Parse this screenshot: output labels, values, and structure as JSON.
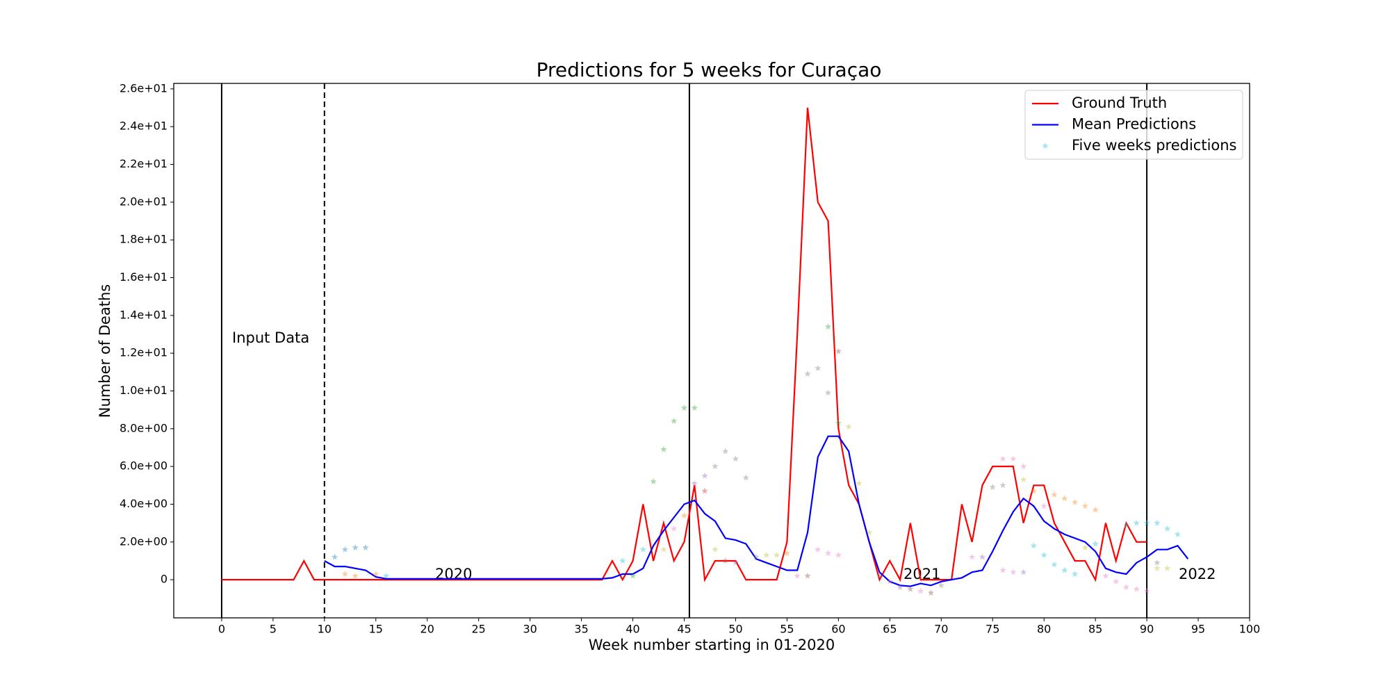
{
  "chart_data": {
    "type": "line",
    "title": "Predictions for 5 weeks for Curaçao",
    "x_label": "Week number starting in 01-2020",
    "y_label": "Number of Deaths",
    "xlim": [
      -4.66,
      100
    ],
    "ylim": [
      -2.02,
      26.29
    ],
    "xticks": [
      0,
      5,
      10,
      15,
      20,
      25,
      30,
      35,
      40,
      45,
      50,
      55,
      60,
      65,
      70,
      75,
      80,
      85,
      90,
      95,
      100
    ],
    "yticks": [
      0,
      {
        "value": 2,
        "label": "2.0e+00"
      },
      {
        "value": 4,
        "label": "4.0e+00"
      },
      {
        "value": 6,
        "label": "6.0e+00"
      },
      {
        "value": 8,
        "label": "8.0e+00"
      },
      {
        "value": 10,
        "label": "1.0e+01"
      },
      {
        "value": 12,
        "label": "1.2e+01"
      },
      {
        "value": 14,
        "label": "1.4e+01"
      },
      {
        "value": 16,
        "label": "1.6e+01"
      },
      {
        "value": 18,
        "label": "1.8e+01"
      },
      {
        "value": 20,
        "label": "2.0e+01"
      },
      {
        "value": 22,
        "label": "2.2e+01"
      },
      {
        "value": 24,
        "label": "2.4e+01"
      },
      {
        "value": 26,
        "label": "2.6e+01"
      }
    ],
    "legend": "upper right",
    "vlines": [
      {
        "x": 0,
        "style": "solid"
      },
      {
        "x": 10,
        "style": "dashed"
      },
      {
        "x": 45.5,
        "style": "solid"
      },
      {
        "x": 90,
        "style": "solid"
      }
    ],
    "annotations": [
      "Input Data",
      "2020",
      "2021",
      "2022"
    ],
    "x": [
      0,
      1,
      2,
      3,
      4,
      5,
      6,
      7,
      8,
      9,
      10,
      11,
      12,
      13,
      14,
      15,
      16,
      17,
      18,
      19,
      20,
      21,
      22,
      23,
      24,
      25,
      26,
      27,
      28,
      29,
      30,
      31,
      32,
      33,
      34,
      35,
      36,
      37,
      38,
      39,
      40,
      41,
      42,
      43,
      44,
      45,
      46,
      47,
      48,
      49,
      50,
      51,
      52,
      53,
      54,
      55,
      56,
      57,
      58,
      59,
      60,
      61,
      62,
      63,
      64,
      65,
      66,
      67,
      68,
      69,
      70,
      71,
      72,
      73,
      74,
      75,
      76,
      77,
      78,
      79,
      80,
      81,
      82,
      83,
      84,
      85,
      86,
      87,
      88,
      89,
      90,
      91,
      92,
      93,
      94
    ],
    "series": [
      {
        "name": "Ground Truth",
        "color": "#ff0000",
        "values": [
          0,
          0,
          0,
          0,
          0,
          0,
          0,
          0,
          1,
          0,
          0,
          0,
          0,
          0,
          0,
          0,
          0,
          0,
          0,
          0,
          0,
          0,
          0,
          0,
          0,
          0,
          0,
          0,
          0,
          0,
          0,
          0,
          0,
          0,
          0,
          0,
          0,
          0,
          1,
          0,
          1,
          4,
          1,
          3,
          1,
          2,
          5,
          0,
          1,
          1,
          1,
          0,
          0,
          0,
          0,
          2,
          13,
          25,
          20,
          19,
          8,
          5,
          4,
          2,
          0,
          1,
          0,
          3,
          0,
          0,
          0,
          0,
          4,
          2,
          5,
          6,
          6,
          6,
          3,
          5,
          5,
          3,
          2,
          1,
          1,
          0,
          3,
          1,
          3,
          2,
          2,
          null,
          null,
          null,
          null
        ]
      },
      {
        "name": "Mean Predictions",
        "color": "#0000ff",
        "values": [
          null,
          null,
          null,
          null,
          null,
          null,
          null,
          null,
          null,
          null,
          1.0,
          0.7,
          0.7,
          0.6,
          0.5,
          0.15,
          0.05,
          0.05,
          0.05,
          0.05,
          0.05,
          0.05,
          0.05,
          0.05,
          0.05,
          0.05,
          0.05,
          0.05,
          0.05,
          0.05,
          0.05,
          0.05,
          0.05,
          0.05,
          0.05,
          0.05,
          0.05,
          0.05,
          0.1,
          0.3,
          0.3,
          0.6,
          1.8,
          2.6,
          3.3,
          4.0,
          4.2,
          3.5,
          3.1,
          2.2,
          2.1,
          1.9,
          1.1,
          0.9,
          0.7,
          0.5,
          0.5,
          2.5,
          6.5,
          7.6,
          7.6,
          6.8,
          4.0,
          2.0,
          0.4,
          -0.1,
          -0.3,
          -0.35,
          -0.2,
          -0.3,
          -0.1,
          0.0,
          0.1,
          0.4,
          0.5,
          1.5,
          2.6,
          3.6,
          4.3,
          3.9,
          3.1,
          2.7,
          2.4,
          2.2,
          2.0,
          1.5,
          0.6,
          0.4,
          0.3,
          0.9,
          1.2,
          1.6,
          1.6,
          1.8,
          1.1
        ]
      },
      {
        "name": "Five weeks predictions",
        "type": "scatter",
        "color": "#17becf",
        "x": [
          11,
          12,
          13,
          14,
          12,
          13,
          15,
          16,
          39,
          40,
          41,
          42,
          43,
          44,
          45,
          46,
          43,
          44,
          45,
          46,
          47,
          47,
          48,
          49,
          50,
          51,
          48,
          49,
          50,
          52,
          53,
          54,
          55,
          56,
          57,
          58,
          59,
          59,
          60,
          60,
          61,
          62,
          63,
          58,
          59,
          60,
          57,
          64,
          65,
          66,
          67,
          68,
          69,
          70,
          73,
          74,
          75,
          76,
          77,
          78,
          78,
          76,
          79,
          80,
          81,
          82,
          83,
          84,
          85,
          79,
          80,
          81,
          82,
          83,
          84,
          85,
          86,
          87,
          88,
          89,
          90,
          88,
          89,
          90,
          91,
          92,
          93,
          91,
          92,
          91,
          76,
          77,
          78
        ],
        "values": [
          1.2,
          1.6,
          1.7,
          1.7,
          0.3,
          0.2,
          0.3,
          0.2,
          1.0,
          0.2,
          1.6,
          5.2,
          6.9,
          8.4,
          9.1,
          9.1,
          1.6,
          2.7,
          3.4,
          5.1,
          5.5,
          4.7,
          6.0,
          6.8,
          6.4,
          5.4,
          1.6,
          1.0,
          0.9,
          1.2,
          1.3,
          1.3,
          1.4,
          0.2,
          10.9,
          11.2,
          13.4,
          9.9,
          12.1,
          8.3,
          8.1,
          5.1,
          2.5,
          1.6,
          1.4,
          1.3,
          0.2,
          0.2,
          -0.1,
          -0.4,
          -0.5,
          -0.6,
          -0.7,
          -0.3,
          1.2,
          1.2,
          4.9,
          6.4,
          6.4,
          6.0,
          5.3,
          5.0,
          4.7,
          3.9,
          4.5,
          4.3,
          4.1,
          3.9,
          3.7,
          1.8,
          1.3,
          0.8,
          0.5,
          0.3,
          1.7,
          1.9,
          0.2,
          -0.1,
          -0.4,
          -0.5,
          -0.6,
          2.9,
          3.0,
          3.0,
          3.0,
          2.7,
          2.4,
          0.6,
          0.6,
          0.9,
          0.5,
          0.4,
          0.4
        ],
        "colors": [
          "#1f77b4",
          "#1f77b4",
          "#1f77b4",
          "#1f77b4",
          "#ff7f0e",
          "#ff7f0e",
          "#ff7f0e",
          "#17becf",
          "#17becf",
          "#2ca02c",
          "#17becf",
          "#2ca02c",
          "#2ca02c",
          "#2ca02c",
          "#2ca02c",
          "#2ca02c",
          "#bcbd22",
          "#e377c2",
          "#ff7f0e",
          "#9467bd",
          "#9467bd",
          "#d62728",
          "#7f7f7f",
          "#7f7f7f",
          "#7f7f7f",
          "#7f7f7f",
          "#bcbd22",
          "#8c564b",
          "#9467bd",
          "#7f7f7f",
          "#bcbd22",
          "#bcbd22",
          "#ff7f0e",
          "#e377c2",
          "#7f7f7f",
          "#7f7f7f",
          "#2ca02c",
          "#7f7f7f",
          "#8c564b",
          "#2ca02c",
          "#bcbd22",
          "#bcbd22",
          "#bcbd22",
          "#e377c2",
          "#e377c2",
          "#e377c2",
          "#8c564b",
          "#7f7f7f",
          "#e377c2",
          "#9467bd",
          "#8c564b",
          "#e377c2",
          "#8c564b",
          "#7f7f7f",
          "#e377c2",
          "#9467bd",
          "#7f7f7f",
          "#e377c2",
          "#e377c2",
          "#e377c2",
          "#bcbd22",
          "#7f7f7f",
          "#ff7f0e",
          "#e377c2",
          "#ff7f0e",
          "#ff7f0e",
          "#ff7f0e",
          "#ff7f0e",
          "#ff7f0e",
          "#17becf",
          "#17becf",
          "#17becf",
          "#17becf",
          "#17becf",
          "#bcbd22",
          "#17becf",
          "#e377c2",
          "#e377c2",
          "#e377c2",
          "#e377c2",
          "#e377c2",
          "#17becf",
          "#17becf",
          "#17becf",
          "#17becf",
          "#17becf",
          "#17becf",
          "#bcbd22",
          "#bcbd22",
          "#7f7f7f",
          "#e377c2",
          "#e377c2",
          "#9467bd"
        ]
      }
    ]
  }
}
